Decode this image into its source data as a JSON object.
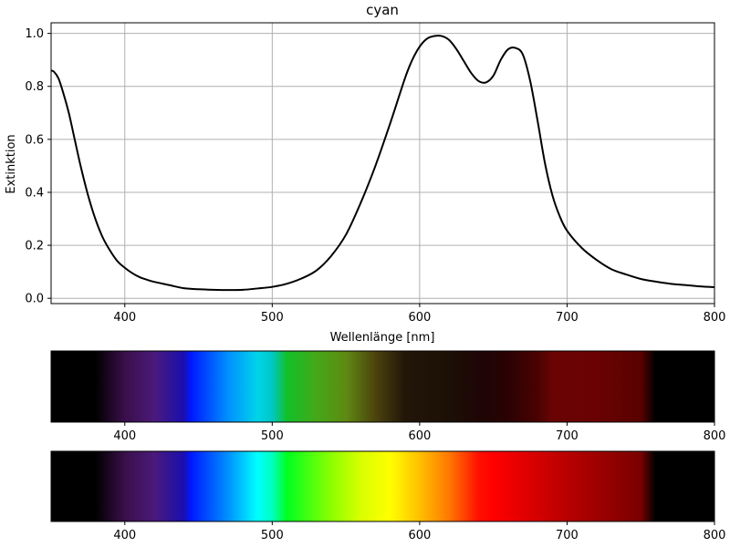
{
  "chart_data": [
    {
      "type": "line",
      "title": "cyan",
      "xlabel": "Wellenlänge [nm]",
      "ylabel": "Extinktion",
      "xlim": [
        350,
        800
      ],
      "ylim": [
        -0.02,
        1.04
      ],
      "grid": true,
      "x_ticks": [
        400,
        500,
        600,
        700,
        800
      ],
      "y_ticks": [
        0.0,
        0.2,
        0.4,
        0.6,
        0.8,
        1.0
      ],
      "x_tick_labels": [
        "400",
        "500",
        "600",
        "700",
        "800"
      ],
      "y_tick_labels": [
        "0.0",
        "0.2",
        "0.4",
        "0.6",
        "0.8",
        "1.0"
      ],
      "series": [
        {
          "color": "#000000",
          "x": [
            350,
            352,
            355,
            358,
            362,
            366,
            370,
            375,
            380,
            385,
            390,
            395,
            400,
            405,
            410,
            415,
            420,
            430,
            440,
            450,
            460,
            470,
            480,
            490,
            500,
            510,
            520,
            530,
            540,
            550,
            560,
            570,
            580,
            590,
            595,
            600,
            605,
            610,
            615,
            620,
            625,
            630,
            635,
            640,
            645,
            650,
            655,
            660,
            665,
            670,
            675,
            680,
            685,
            690,
            695,
            700,
            710,
            720,
            730,
            740,
            750,
            760,
            770,
            780,
            790,
            800
          ],
          "y": [
            0.86,
            0.855,
            0.83,
            0.78,
            0.7,
            0.6,
            0.5,
            0.39,
            0.3,
            0.23,
            0.18,
            0.14,
            0.115,
            0.095,
            0.08,
            0.07,
            0.062,
            0.05,
            0.038,
            0.034,
            0.032,
            0.031,
            0.032,
            0.037,
            0.043,
            0.055,
            0.075,
            0.105,
            0.16,
            0.24,
            0.36,
            0.5,
            0.66,
            0.83,
            0.9,
            0.95,
            0.98,
            0.99,
            0.99,
            0.975,
            0.94,
            0.895,
            0.85,
            0.82,
            0.815,
            0.84,
            0.9,
            0.94,
            0.945,
            0.92,
            0.82,
            0.67,
            0.51,
            0.39,
            0.31,
            0.255,
            0.19,
            0.145,
            0.11,
            0.09,
            0.073,
            0.063,
            0.055,
            0.05,
            0.045,
            0.042
          ]
        }
      ]
    },
    {
      "type": "heatmap",
      "description_key": "filtered_spectrum",
      "xlim": [
        350,
        800
      ],
      "x_ticks": [
        400,
        500,
        600,
        700,
        800
      ],
      "x_tick_labels": [
        "400",
        "500",
        "600",
        "700",
        "800"
      ],
      "stops": [
        {
          "nm": 350,
          "color": "#000000"
        },
        {
          "nm": 380,
          "color": "#000000"
        },
        {
          "nm": 400,
          "color": "#3a0f4a"
        },
        {
          "nm": 420,
          "color": "#4a1a7a"
        },
        {
          "nm": 440,
          "color": "#1b0eb0"
        },
        {
          "nm": 445,
          "color": "#0018ff"
        },
        {
          "nm": 470,
          "color": "#0090ff"
        },
        {
          "nm": 490,
          "color": "#00d4ea"
        },
        {
          "nm": 500,
          "color": "#00c8c4"
        },
        {
          "nm": 510,
          "color": "#12c02a"
        },
        {
          "nm": 530,
          "color": "#44a818"
        },
        {
          "nm": 550,
          "color": "#5e8a12"
        },
        {
          "nm": 570,
          "color": "#4c430c"
        },
        {
          "nm": 590,
          "color": "#221609"
        },
        {
          "nm": 620,
          "color": "#1c1006"
        },
        {
          "nm": 640,
          "color": "#1e0606"
        },
        {
          "nm": 660,
          "color": "#2a0202"
        },
        {
          "nm": 680,
          "color": "#4a0202"
        },
        {
          "nm": 690,
          "color": "#6a0404"
        },
        {
          "nm": 720,
          "color": "#6a0202"
        },
        {
          "nm": 750,
          "color": "#5a0101"
        },
        {
          "nm": 760,
          "color": "#000000"
        },
        {
          "nm": 800,
          "color": "#000000"
        }
      ]
    },
    {
      "type": "heatmap",
      "description_key": "visible_spectrum",
      "xlim": [
        350,
        800
      ],
      "x_ticks": [
        400,
        500,
        600,
        700,
        800
      ],
      "x_tick_labels": [
        "400",
        "500",
        "600",
        "700",
        "800"
      ],
      "stops": [
        {
          "nm": 350,
          "color": "#000000"
        },
        {
          "nm": 380,
          "color": "#000000"
        },
        {
          "nm": 400,
          "color": "#3a0f4a"
        },
        {
          "nm": 420,
          "color": "#4a1a7a"
        },
        {
          "nm": 440,
          "color": "#1b0eb0"
        },
        {
          "nm": 445,
          "color": "#0018ff"
        },
        {
          "nm": 470,
          "color": "#0090ff"
        },
        {
          "nm": 490,
          "color": "#00ffff"
        },
        {
          "nm": 500,
          "color": "#00ffc0"
        },
        {
          "nm": 510,
          "color": "#00ff20"
        },
        {
          "nm": 540,
          "color": "#8cff00"
        },
        {
          "nm": 560,
          "color": "#d8ff00"
        },
        {
          "nm": 580,
          "color": "#ffff00"
        },
        {
          "nm": 600,
          "color": "#ffc000"
        },
        {
          "nm": 620,
          "color": "#ff7800"
        },
        {
          "nm": 640,
          "color": "#ff1000"
        },
        {
          "nm": 650,
          "color": "#ff0000"
        },
        {
          "nm": 700,
          "color": "#b80000"
        },
        {
          "nm": 750,
          "color": "#7a0000"
        },
        {
          "nm": 760,
          "color": "#000000"
        },
        {
          "nm": 800,
          "color": "#000000"
        }
      ]
    }
  ]
}
